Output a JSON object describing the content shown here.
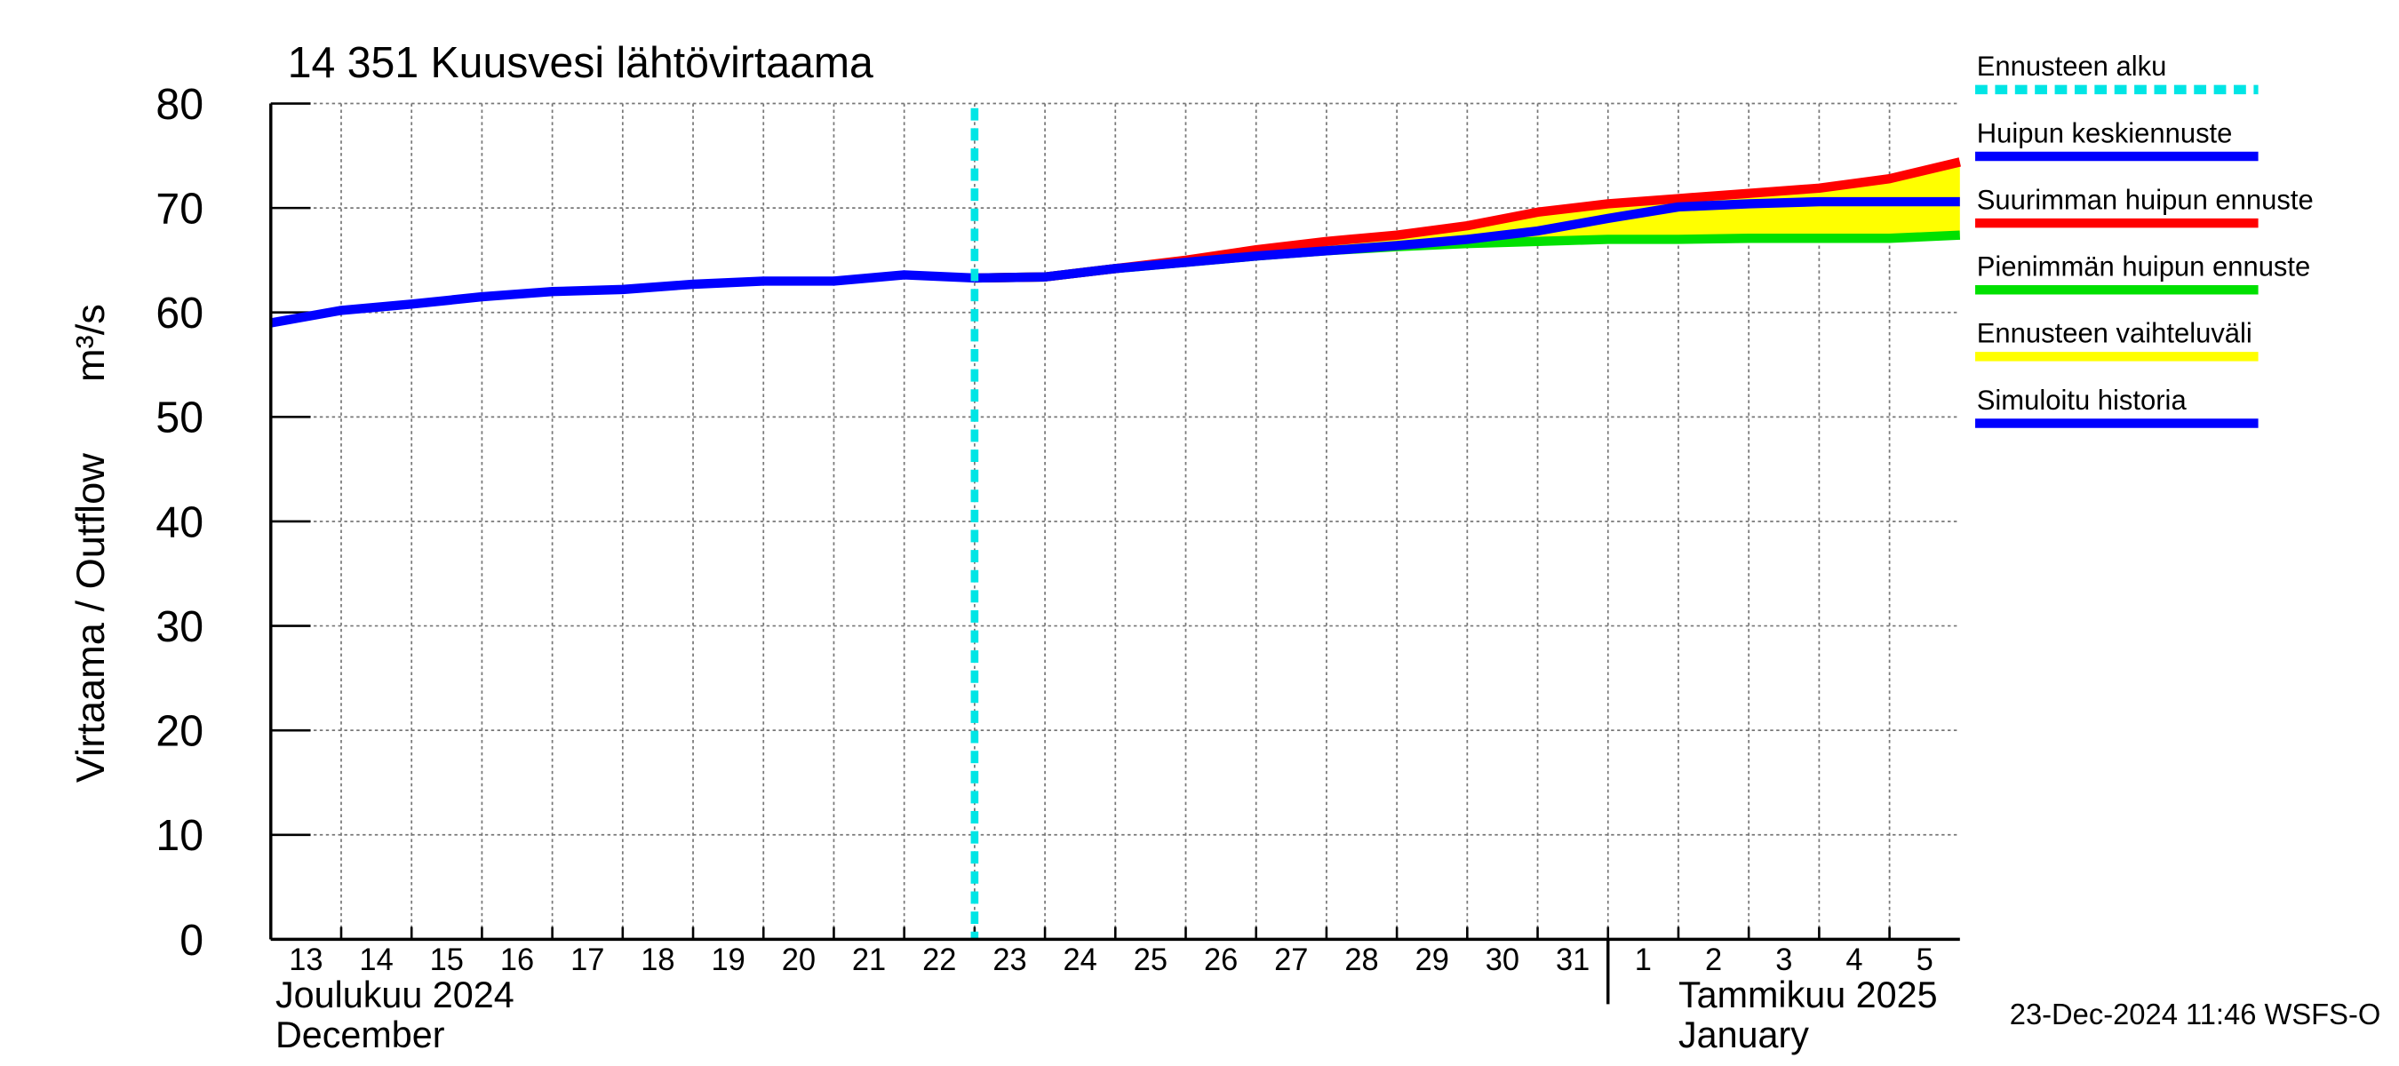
{
  "chart_data": {
    "type": "line",
    "title": "14 351 Kuusvesi lähtövirtaama",
    "y_label": "Virtaama / Outflow",
    "y_unit": "m³/s",
    "months": [
      {
        "x": "2024-12-13",
        "label": "Joulukuu  2024",
        "label_en": "December"
      },
      {
        "x": "2025-01-01",
        "label": "Tammikuu  2025",
        "label_en": "January"
      }
    ],
    "timestamp": "23-Dec-2024 11:46 WSFS-O",
    "x": [
      "2024-12-13",
      "2024-12-14",
      "2024-12-15",
      "2024-12-16",
      "2024-12-17",
      "2024-12-18",
      "2024-12-19",
      "2024-12-20",
      "2024-12-21",
      "2024-12-22",
      "2024-12-23",
      "2024-12-24",
      "2024-12-25",
      "2024-12-26",
      "2024-12-27",
      "2024-12-28",
      "2024-12-29",
      "2024-12-30",
      "2024-12-31",
      "2025-01-01",
      "2025-01-02",
      "2025-01-03",
      "2025-01-04",
      "2025-01-05",
      "2025-01-06"
    ],
    "xlim": [
      "2024-12-13",
      "2025-01-06"
    ],
    "xticks": [
      {
        "value": "2024-12-13",
        "label": "13"
      },
      {
        "value": "2024-12-14",
        "label": "14"
      },
      {
        "value": "2024-12-15",
        "label": "15"
      },
      {
        "value": "2024-12-16",
        "label": "16"
      },
      {
        "value": "2024-12-17",
        "label": "17"
      },
      {
        "value": "2024-12-18",
        "label": "18"
      },
      {
        "value": "2024-12-19",
        "label": "19"
      },
      {
        "value": "2024-12-20",
        "label": "20"
      },
      {
        "value": "2024-12-21",
        "label": "21"
      },
      {
        "value": "2024-12-22",
        "label": "22"
      },
      {
        "value": "2024-12-23",
        "label": "23"
      },
      {
        "value": "2024-12-24",
        "label": "24"
      },
      {
        "value": "2024-12-25",
        "label": "25"
      },
      {
        "value": "2024-12-26",
        "label": "26"
      },
      {
        "value": "2024-12-27",
        "label": "27"
      },
      {
        "value": "2024-12-28",
        "label": "28"
      },
      {
        "value": "2024-12-29",
        "label": "29"
      },
      {
        "value": "2024-12-30",
        "label": "30"
      },
      {
        "value": "2024-12-31",
        "label": "31"
      },
      {
        "value": "2025-01-01",
        "label": "1"
      },
      {
        "value": "2025-01-02",
        "label": "2"
      },
      {
        "value": "2025-01-03",
        "label": "3"
      },
      {
        "value": "2025-01-04",
        "label": "4"
      },
      {
        "value": "2025-01-05",
        "label": "5"
      }
    ],
    "ylim": [
      0,
      80
    ],
    "yticks": [
      0,
      10,
      20,
      30,
      40,
      50,
      60,
      70,
      80
    ],
    "grid": true,
    "forecast_start": {
      "name": "Ennusteen alku",
      "color": "#00e5e5",
      "x": "2024-12-23"
    },
    "range_band": {
      "name": "Ennusteen vaihteluväli",
      "color": "#ffff00"
    },
    "series": [
      {
        "name": "Huipun keskiennuste",
        "color": "#0000ff",
        "values": [
          null,
          null,
          null,
          null,
          null,
          null,
          null,
          null,
          null,
          null,
          63.3,
          63.4,
          64.2,
          64.8,
          65.4,
          65.9,
          66.4,
          67,
          67.8,
          69,
          70.1,
          70.4,
          70.6,
          70.6,
          70.6
        ]
      },
      {
        "name": "Suurimman huipun ennuste",
        "color": "#ff0000",
        "values": [
          null,
          null,
          null,
          null,
          null,
          null,
          null,
          null,
          null,
          null,
          63.3,
          63.4,
          64.2,
          65,
          66,
          66.8,
          67.4,
          68.3,
          69.6,
          70.4,
          70.9,
          71.4,
          71.9,
          72.8,
          74.4
        ]
      },
      {
        "name": "Pienimmän huipun ennuste",
        "color": "#00e000",
        "values": [
          null,
          null,
          null,
          null,
          null,
          null,
          null,
          null,
          null,
          null,
          63.3,
          63.4,
          64.2,
          64.8,
          65.4,
          65.9,
          66.3,
          66.6,
          66.8,
          67,
          67,
          67.1,
          67.1,
          67.1,
          67.4
        ]
      },
      {
        "name": "Simuloitu historia",
        "color": "#0000ff",
        "values": [
          59,
          60.2,
          60.8,
          61.5,
          62,
          62.2,
          62.7,
          63,
          63,
          63.6,
          63.3,
          null,
          null,
          null,
          null,
          null,
          null,
          null,
          null,
          null,
          null,
          null,
          null,
          null,
          null
        ]
      }
    ]
  }
}
